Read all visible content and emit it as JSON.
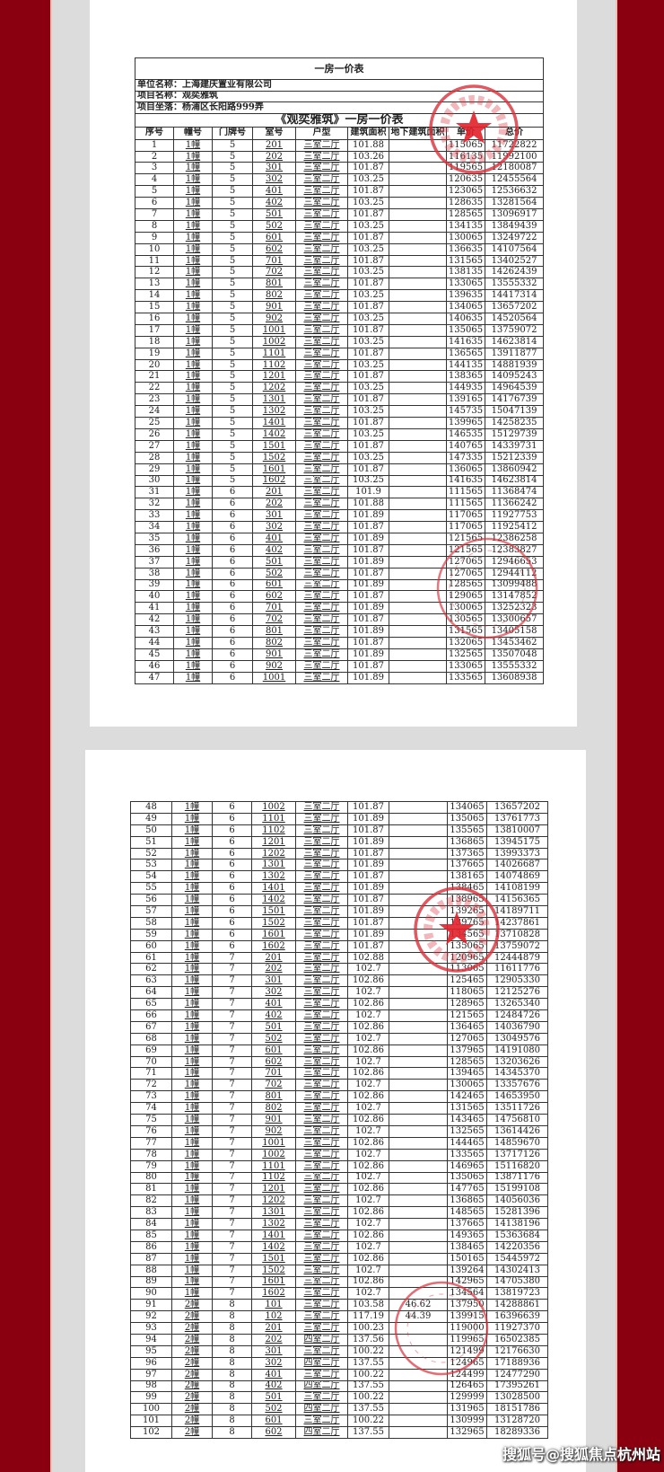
{
  "document": {
    "title": "一房一价表",
    "company": "单位名称：上海建庆置业有限公司",
    "project_name": "项目名称：观奕雅筑",
    "location": "项目坐落：杨浦区长阳路999弄",
    "table_title": "《观奕雅筑》一房一价表",
    "columns": [
      "序号",
      "幢号",
      "门牌号",
      "室号",
      "户型",
      "建筑面积",
      "地下建筑面积",
      "单价",
      "总价"
    ]
  },
  "pages": [
    {
      "rows": [
        [
          "1",
          "1幢",
          "5",
          "201",
          "三室二厅",
          "101.88",
          "",
          "115065",
          "11722822"
        ],
        [
          "2",
          "1幢",
          "5",
          "202",
          "三室二厅",
          "103.26",
          "",
          "116135",
          "11992100"
        ],
        [
          "3",
          "1幢",
          "5",
          "301",
          "三室二厅",
          "101.87",
          "",
          "119565",
          "12180087"
        ],
        [
          "4",
          "1幢",
          "5",
          "302",
          "三室二厅",
          "103.25",
          "",
          "120635",
          "12455564"
        ],
        [
          "5",
          "1幢",
          "5",
          "401",
          "三室二厅",
          "101.87",
          "",
          "123065",
          "12536632"
        ],
        [
          "6",
          "1幢",
          "5",
          "402",
          "三室二厅",
          "103.25",
          "",
          "128635",
          "13281564"
        ],
        [
          "7",
          "1幢",
          "5",
          "501",
          "三室二厅",
          "101.87",
          "",
          "128565",
          "13096917"
        ],
        [
          "8",
          "1幢",
          "5",
          "502",
          "三室二厅",
          "103.25",
          "",
          "134135",
          "13849439"
        ],
        [
          "9",
          "1幢",
          "5",
          "601",
          "三室二厅",
          "101.87",
          "",
          "130065",
          "13249722"
        ],
        [
          "10",
          "1幢",
          "5",
          "602",
          "三室二厅",
          "103.25",
          "",
          "136635",
          "14107564"
        ],
        [
          "11",
          "1幢",
          "5",
          "701",
          "三室二厅",
          "101.87",
          "",
          "131565",
          "13402527"
        ],
        [
          "12",
          "1幢",
          "5",
          "702",
          "三室二厅",
          "103.25",
          "",
          "138135",
          "14262439"
        ],
        [
          "13",
          "1幢",
          "5",
          "801",
          "三室二厅",
          "101.87",
          "",
          "133065",
          "13555332"
        ],
        [
          "14",
          "1幢",
          "5",
          "802",
          "三室二厅",
          "103.25",
          "",
          "139635",
          "14417314"
        ],
        [
          "15",
          "1幢",
          "5",
          "901",
          "三室二厅",
          "101.87",
          "",
          "134065",
          "13657202"
        ],
        [
          "16",
          "1幢",
          "5",
          "902",
          "三室二厅",
          "103.25",
          "",
          "140635",
          "14520564"
        ],
        [
          "17",
          "1幢",
          "5",
          "1001",
          "三室二厅",
          "101.87",
          "",
          "135065",
          "13759072"
        ],
        [
          "18",
          "1幢",
          "5",
          "1002",
          "三室二厅",
          "103.25",
          "",
          "141635",
          "14623814"
        ],
        [
          "19",
          "1幢",
          "5",
          "1101",
          "三室二厅",
          "101.87",
          "",
          "136565",
          "13911877"
        ],
        [
          "20",
          "1幢",
          "5",
          "1102",
          "三室二厅",
          "103.25",
          "",
          "144135",
          "14881939"
        ],
        [
          "21",
          "1幢",
          "5",
          "1201",
          "三室二厅",
          "101.87",
          "",
          "138365",
          "14095243"
        ],
        [
          "22",
          "1幢",
          "5",
          "1202",
          "三室二厅",
          "103.25",
          "",
          "144935",
          "14964539"
        ],
        [
          "23",
          "1幢",
          "5",
          "1301",
          "三室二厅",
          "101.87",
          "",
          "139165",
          "14176739"
        ],
        [
          "24",
          "1幢",
          "5",
          "1302",
          "三室二厅",
          "103.25",
          "",
          "145735",
          "15047139"
        ],
        [
          "25",
          "1幢",
          "5",
          "1401",
          "三室二厅",
          "101.87",
          "",
          "139965",
          "14258235"
        ],
        [
          "26",
          "1幢",
          "5",
          "1402",
          "三室二厅",
          "103.25",
          "",
          "146535",
          "15129739"
        ],
        [
          "27",
          "1幢",
          "5",
          "1501",
          "三室二厅",
          "101.87",
          "",
          "140765",
          "14339731"
        ],
        [
          "28",
          "1幢",
          "5",
          "1502",
          "三室二厅",
          "103.25",
          "",
          "147335",
          "15212339"
        ],
        [
          "29",
          "1幢",
          "5",
          "1601",
          "三室二厅",
          "101.87",
          "",
          "136065",
          "13860942"
        ],
        [
          "30",
          "1幢",
          "5",
          "1602",
          "三室二厅",
          "103.25",
          "",
          "141635",
          "14623814"
        ],
        [
          "31",
          "1幢",
          "6",
          "201",
          "三室二厅",
          "101.9",
          "",
          "111565",
          "11368474"
        ],
        [
          "32",
          "1幢",
          "6",
          "202",
          "三室二厅",
          "101.88",
          "",
          "111565",
          "11366242"
        ],
        [
          "33",
          "1幢",
          "6",
          "301",
          "三室二厅",
          "101.89",
          "",
          "117065",
          "11927753"
        ],
        [
          "34",
          "1幢",
          "6",
          "302",
          "三室二厅",
          "101.87",
          "",
          "117065",
          "11925412"
        ],
        [
          "35",
          "1幢",
          "6",
          "401",
          "三室二厅",
          "101.89",
          "",
          "121565",
          "12386258"
        ],
        [
          "36",
          "1幢",
          "6",
          "402",
          "三室二厅",
          "101.87",
          "",
          "121565",
          "12383827"
        ],
        [
          "37",
          "1幢",
          "6",
          "501",
          "三室二厅",
          "101.89",
          "",
          "127065",
          "12946653"
        ],
        [
          "38",
          "1幢",
          "6",
          "502",
          "三室二厅",
          "101.87",
          "",
          "127065",
          "12944112"
        ],
        [
          "39",
          "1幢",
          "6",
          "601",
          "三室二厅",
          "101.89",
          "",
          "128565",
          "13099488"
        ],
        [
          "40",
          "1幢",
          "6",
          "602",
          "三室二厅",
          "101.87",
          "",
          "129065",
          "13147852"
        ],
        [
          "41",
          "1幢",
          "6",
          "701",
          "三室二厅",
          "101.89",
          "",
          "130065",
          "13252323"
        ],
        [
          "42",
          "1幢",
          "6",
          "702",
          "三室二厅",
          "101.87",
          "",
          "130565",
          "13300657"
        ],
        [
          "43",
          "1幢",
          "6",
          "801",
          "三室二厅",
          "101.89",
          "",
          "131565",
          "13405158"
        ],
        [
          "44",
          "1幢",
          "6",
          "802",
          "三室二厅",
          "101.87",
          "",
          "132065",
          "13453462"
        ],
        [
          "45",
          "1幢",
          "6",
          "901",
          "三室二厅",
          "101.89",
          "",
          "132565",
          "13507048"
        ],
        [
          "46",
          "1幢",
          "6",
          "902",
          "三室二厅",
          "101.87",
          "",
          "133065",
          "13555332"
        ],
        [
          "47",
          "1幢",
          "6",
          "1001",
          "三室二厅",
          "101.89",
          "",
          "133565",
          "13608938"
        ]
      ]
    },
    {
      "rows": [
        [
          "48",
          "1幢",
          "6",
          "1002",
          "三室二厅",
          "101.87",
          "",
          "134065",
          "13657202"
        ],
        [
          "49",
          "1幢",
          "6",
          "1101",
          "三室二厅",
          "101.89",
          "",
          "135065",
          "13761773"
        ],
        [
          "50",
          "1幢",
          "6",
          "1102",
          "三室二厅",
          "101.87",
          "",
          "135565",
          "13810007"
        ],
        [
          "51",
          "1幢",
          "6",
          "1201",
          "三室二厅",
          "101.89",
          "",
          "136865",
          "13945175"
        ],
        [
          "52",
          "1幢",
          "6",
          "1202",
          "三室二厅",
          "101.87",
          "",
          "137365",
          "13993373"
        ],
        [
          "53",
          "1幢",
          "6",
          "1301",
          "三室二厅",
          "101.89",
          "",
          "137665",
          "14026687"
        ],
        [
          "54",
          "1幢",
          "6",
          "1302",
          "三室二厅",
          "101.87",
          "",
          "138165",
          "14074869"
        ],
        [
          "55",
          "1幢",
          "6",
          "1401",
          "三室二厅",
          "101.89",
          "",
          "138465",
          "14108199"
        ],
        [
          "56",
          "1幢",
          "6",
          "1402",
          "三室二厅",
          "101.87",
          "",
          "138965",
          "14156365"
        ],
        [
          "57",
          "1幢",
          "6",
          "1501",
          "三室二厅",
          "101.89",
          "",
          "139265",
          "14189711"
        ],
        [
          "58",
          "1幢",
          "6",
          "1502",
          "三室二厅",
          "101.87",
          "",
          "139765",
          "14237861"
        ],
        [
          "59",
          "1幢",
          "6",
          "1601",
          "三室二厅",
          "101.89",
          "",
          "134565",
          "13710828"
        ],
        [
          "60",
          "1幢",
          "6",
          "1602",
          "三室二厅",
          "101.87",
          "",
          "135065",
          "13759072"
        ],
        [
          "61",
          "1幢",
          "7",
          "201",
          "三室二厅",
          "102.88",
          "",
          "120965",
          "12444879"
        ],
        [
          "62",
          "1幢",
          "7",
          "202",
          "三室二厅",
          "102.7",
          "",
          "113065",
          "11611776"
        ],
        [
          "63",
          "1幢",
          "7",
          "301",
          "三室二厅",
          "102.86",
          "",
          "125465",
          "12905330"
        ],
        [
          "64",
          "1幢",
          "7",
          "302",
          "三室二厅",
          "102.7",
          "",
          "118065",
          "12125276"
        ],
        [
          "65",
          "1幢",
          "7",
          "401",
          "三室二厅",
          "102.86",
          "",
          "128965",
          "13265340"
        ],
        [
          "66",
          "1幢",
          "7",
          "402",
          "三室二厅",
          "102.7",
          "",
          "121565",
          "12484726"
        ],
        [
          "67",
          "1幢",
          "7",
          "501",
          "三室二厅",
          "102.86",
          "",
          "136465",
          "14036790"
        ],
        [
          "68",
          "1幢",
          "7",
          "502",
          "三室二厅",
          "102.7",
          "",
          "127065",
          "13049576"
        ],
        [
          "69",
          "1幢",
          "7",
          "601",
          "三室二厅",
          "102.86",
          "",
          "137965",
          "14191080"
        ],
        [
          "70",
          "1幢",
          "7",
          "602",
          "三室二厅",
          "102.7",
          "",
          "128565",
          "13203626"
        ],
        [
          "71",
          "1幢",
          "7",
          "701",
          "三室二厅",
          "102.86",
          "",
          "139465",
          "14345370"
        ],
        [
          "72",
          "1幢",
          "7",
          "702",
          "三室二厅",
          "102.7",
          "",
          "130065",
          "13357676"
        ],
        [
          "73",
          "1幢",
          "7",
          "801",
          "三室二厅",
          "102.86",
          "",
          "142465",
          "14653950"
        ],
        [
          "74",
          "1幢",
          "7",
          "802",
          "三室二厅",
          "102.7",
          "",
          "131565",
          "13511726"
        ],
        [
          "75",
          "1幢",
          "7",
          "901",
          "三室二厅",
          "102.86",
          "",
          "143465",
          "14756810"
        ],
        [
          "76",
          "1幢",
          "7",
          "902",
          "三室二厅",
          "102.7",
          "",
          "132565",
          "13614426"
        ],
        [
          "77",
          "1幢",
          "7",
          "1001",
          "三室二厅",
          "102.86",
          "",
          "144465",
          "14859670"
        ],
        [
          "78",
          "1幢",
          "7",
          "1002",
          "三室二厅",
          "102.7",
          "",
          "133565",
          "13717126"
        ],
        [
          "79",
          "1幢",
          "7",
          "1101",
          "三室二厅",
          "102.86",
          "",
          "146965",
          "15116820"
        ],
        [
          "80",
          "1幢",
          "7",
          "1102",
          "三室二厅",
          "102.7",
          "",
          "135065",
          "13871176"
        ],
        [
          "81",
          "1幢",
          "7",
          "1201",
          "三室二厅",
          "102.86",
          "",
          "147765",
          "15199108"
        ],
        [
          "82",
          "1幢",
          "7",
          "1202",
          "三室二厅",
          "102.7",
          "",
          "136865",
          "14056036"
        ],
        [
          "83",
          "1幢",
          "7",
          "1301",
          "三室二厅",
          "102.86",
          "",
          "148565",
          "15281396"
        ],
        [
          "84",
          "1幢",
          "7",
          "1302",
          "三室二厅",
          "102.7",
          "",
          "137665",
          "14138196"
        ],
        [
          "85",
          "1幢",
          "7",
          "1401",
          "三室二厅",
          "102.86",
          "",
          "149365",
          "15363684"
        ],
        [
          "86",
          "1幢",
          "7",
          "1402",
          "三室二厅",
          "102.7",
          "",
          "138465",
          "14220356"
        ],
        [
          "87",
          "1幢",
          "7",
          "1501",
          "三室二厅",
          "102.86",
          "",
          "150165",
          "15445972"
        ],
        [
          "88",
          "1幢",
          "7",
          "1502",
          "三室二厅",
          "102.7",
          "",
          "139264",
          "14302413"
        ],
        [
          "89",
          "1幢",
          "7",
          "1601",
          "三室二厅",
          "102.86",
          "",
          "142965",
          "14705380"
        ],
        [
          "90",
          "1幢",
          "7",
          "1602",
          "三室二厅",
          "102.7",
          "",
          "134564",
          "13819723"
        ],
        [
          "91",
          "2幢",
          "8",
          "101",
          "三室二厅",
          "103.58",
          "46.62",
          "137950",
          "14288861"
        ],
        [
          "92",
          "2幢",
          "8",
          "102",
          "三室二厅",
          "117.19",
          "44.39",
          "139915",
          "16396639"
        ],
        [
          "93",
          "2幢",
          "8",
          "201",
          "三室二厅",
          "100.23",
          "",
          "119000",
          "11927370"
        ],
        [
          "94",
          "2幢",
          "8",
          "202",
          "四室二厅",
          "137.56",
          "",
          "119965",
          "16502385"
        ],
        [
          "95",
          "2幢",
          "8",
          "301",
          "三室二厅",
          "100.22",
          "",
          "121499",
          "12176630"
        ],
        [
          "96",
          "2幢",
          "8",
          "302",
          "四室二厅",
          "137.55",
          "",
          "124965",
          "17188936"
        ],
        [
          "97",
          "2幢",
          "8",
          "401",
          "三室二厅",
          "100.22",
          "",
          "124499",
          "12477290"
        ],
        [
          "98",
          "2幢",
          "8",
          "402",
          "四室二厅",
          "137.55",
          "",
          "126465",
          "17395261"
        ],
        [
          "99",
          "2幢",
          "8",
          "501",
          "三室二厅",
          "100.22",
          "",
          "129999",
          "13028500"
        ],
        [
          "100",
          "2幢",
          "8",
          "502",
          "四室二厅",
          "137.55",
          "",
          "131965",
          "18151786"
        ],
        [
          "101",
          "2幢",
          "8",
          "601",
          "三室二厅",
          "100.22",
          "",
          "130999",
          "13128720"
        ],
        [
          "102",
          "2幢",
          "8",
          "602",
          "四室二厅",
          "137.55",
          "",
          "132965",
          "18289336"
        ]
      ]
    }
  ],
  "watermark": "搜狐号@搜狐焦点杭州站",
  "colors": {
    "border_red": "#8b0010",
    "background": "#dcdcdc",
    "stamp_red": "#d8303a"
  }
}
